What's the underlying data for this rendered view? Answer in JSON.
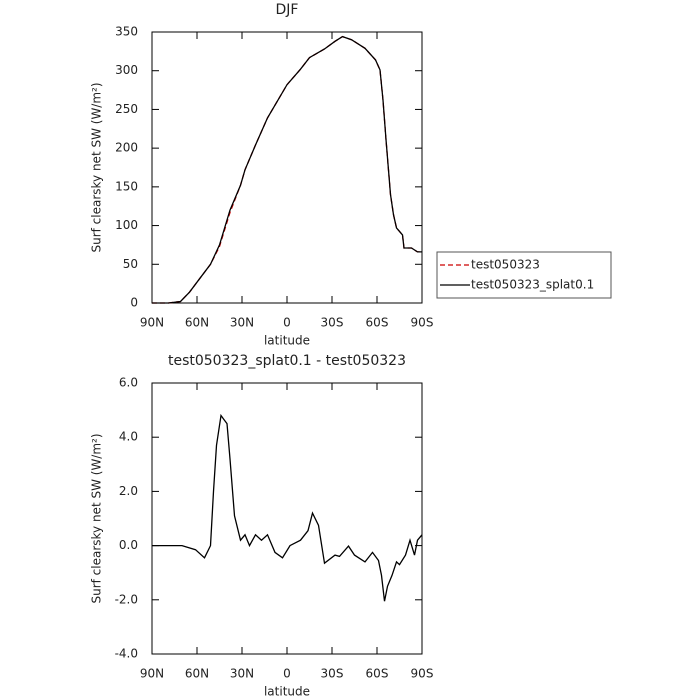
{
  "chart_data": [
    {
      "type": "line",
      "title": "DJF",
      "xlabel": "latitude",
      "ylabel": "Surf clearsky net SW (W/m²)",
      "x": [
        90,
        79,
        71,
        65,
        58,
        51,
        45,
        38,
        31,
        28,
        21,
        13,
        0,
        -9,
        -15,
        -25,
        -32,
        -37,
        -43,
        -52,
        -59,
        -62,
        -64,
        -66,
        -69,
        -71,
        -73,
        -77,
        -78,
        -83,
        -87,
        -90
      ],
      "series": [
        {
          "name": "test050323",
          "color": "#cc0000",
          "dash": true,
          "values": [
            0,
            0,
            2,
            14,
            32,
            50,
            73,
            117,
            152,
            172,
            204,
            239,
            282,
            302,
            317,
            328,
            338,
            344,
            340,
            329,
            314,
            301,
            262,
            211,
            140,
            114,
            97,
            88,
            71,
            71,
            66,
            66
          ]
        },
        {
          "name": "test050323_splat0.1",
          "color": "#000000",
          "dash": false,
          "values": [
            0,
            0,
            2,
            14,
            32,
            50,
            75,
            120,
            152,
            172,
            204,
            239,
            282,
            302,
            317,
            328,
            338,
            344,
            340,
            329,
            314,
            301,
            262,
            211,
            140,
            114,
            97,
            88,
            71,
            71,
            66,
            66
          ]
        }
      ],
      "xlim": [
        90,
        -90
      ],
      "xticks": [
        {
          "value": 90,
          "label": "90N"
        },
        {
          "value": 60,
          "label": "60N"
        },
        {
          "value": 30,
          "label": "30N"
        },
        0,
        {
          "value": -30,
          "label": "30S"
        },
        {
          "value": -60,
          "label": "60S"
        },
        {
          "value": -90,
          "label": "90S"
        }
      ],
      "ylim": [
        0,
        350
      ],
      "yticks": [
        0,
        50,
        100,
        150,
        200,
        250,
        300,
        350
      ],
      "legend": "right"
    },
    {
      "type": "line",
      "title": "test050323_splat0.1 - test050323",
      "xlabel": "latitude",
      "ylabel": "Surf clearsky net SW (W/m²)",
      "x": [
        90,
        70,
        61,
        55,
        51,
        49,
        47,
        44,
        42,
        40,
        38,
        35,
        31,
        28,
        25,
        21,
        17,
        13,
        8,
        3,
        -2,
        -9,
        -14,
        -17,
        -21,
        -25,
        -32,
        -35,
        -41,
        -45,
        -52,
        -57,
        -61,
        -63,
        -65,
        -67,
        -70,
        -73,
        -75,
        -79,
        -82,
        -85,
        -87,
        -90
      ],
      "series": [
        {
          "color": "#000000",
          "dash": false,
          "values": [
            0,
            0,
            -0.15,
            -0.45,
            0,
            2.0,
            3.7,
            4.8,
            4.65,
            4.5,
            3.2,
            1.1,
            0.2,
            0.4,
            0,
            0.4,
            0.2,
            0.4,
            -0.25,
            -0.45,
            0,
            0.2,
            0.55,
            1.2,
            0.75,
            -0.65,
            -0.35,
            -0.4,
            -0.02,
            -0.35,
            -0.6,
            -0.25,
            -0.55,
            -1.1,
            -2.05,
            -1.5,
            -1.1,
            -0.6,
            -0.7,
            -0.35,
            0.2,
            -0.35,
            0.2,
            0.4
          ]
        }
      ],
      "xlim": [
        90,
        -90
      ],
      "xticks": [
        {
          "value": 90,
          "label": "90N"
        },
        {
          "value": 60,
          "label": "60N"
        },
        {
          "value": 30,
          "label": "30N"
        },
        0,
        {
          "value": -30,
          "label": "30S"
        },
        {
          "value": -60,
          "label": "60S"
        },
        {
          "value": -90,
          "label": "90S"
        }
      ],
      "ylim": [
        -4,
        6
      ],
      "yticks": [
        {
          "value": -4,
          "label": "-4.0"
        },
        {
          "value": -2,
          "label": "-2.0"
        },
        {
          "value": 0,
          "label": "0.0"
        },
        {
          "value": 2,
          "label": "2.0"
        },
        {
          "value": 4,
          "label": "4.0"
        },
        {
          "value": 6,
          "label": "6.0"
        }
      ]
    }
  ]
}
